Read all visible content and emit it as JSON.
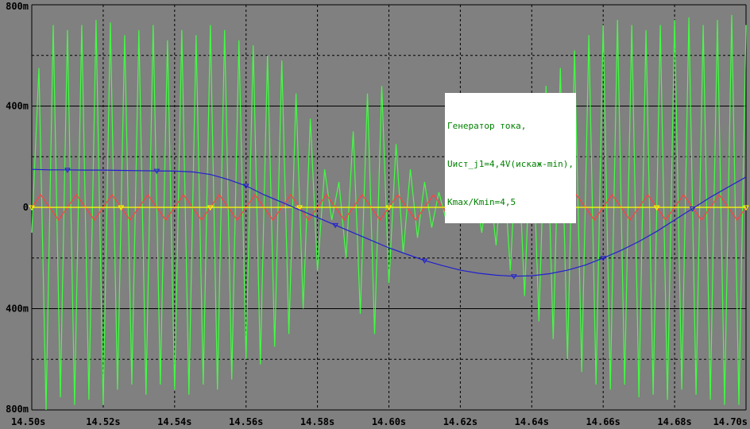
{
  "chart_data": {
    "type": "line",
    "title": "",
    "xlabel": "",
    "ylabel": "",
    "xlim": [
      14.5,
      14.7
    ],
    "ylim": [
      -0.8,
      0.8
    ],
    "grid": true,
    "x_ticks": [
      "14.50s",
      "14.52s",
      "14.54s",
      "14.56s",
      "14.58s",
      "14.60s",
      "14.62s",
      "14.64s",
      "14.66s",
      "14.68s",
      "14.70s"
    ],
    "y_ticks": [
      {
        "value": 0.8,
        "label": "800m"
      },
      {
        "value": 0.4,
        "label": "400m"
      },
      {
        "value": 0.0,
        "label": "0"
      },
      {
        "value": -0.4,
        "label": "400m"
      },
      {
        "value": -0.8,
        "label": "800m"
      }
    ],
    "annotation": [
      "Генератор тока,",
      "Uист_j1=4,4V(искаж-min),",
      "Kmax/Kmin=4,5"
    ],
    "series": [
      {
        "color": "#40FF40",
        "marker": "none",
        "x": [
          14.5,
          14.502,
          14.504,
          14.506,
          14.508,
          14.51,
          14.512,
          14.514,
          14.516,
          14.518,
          14.52,
          14.522,
          14.524,
          14.526,
          14.528,
          14.53,
          14.532,
          14.534,
          14.536,
          14.538,
          14.54,
          14.542,
          14.544,
          14.546,
          14.548,
          14.55,
          14.552,
          14.554,
          14.556,
          14.558,
          14.56,
          14.562,
          14.564,
          14.566,
          14.568,
          14.57,
          14.572,
          14.574,
          14.576,
          14.578,
          14.58,
          14.582,
          14.584,
          14.586,
          14.588,
          14.59,
          14.592,
          14.594,
          14.596,
          14.598,
          14.6,
          14.602,
          14.604,
          14.606,
          14.608,
          14.61,
          14.612,
          14.614,
          14.616,
          14.618,
          14.62,
          14.622,
          14.624,
          14.626,
          14.628,
          14.63,
          14.632,
          14.634,
          14.636,
          14.638,
          14.64,
          14.642,
          14.644,
          14.646,
          14.648,
          14.65,
          14.652,
          14.654,
          14.656,
          14.658,
          14.66,
          14.662,
          14.664,
          14.666,
          14.668,
          14.67,
          14.672,
          14.674,
          14.676,
          14.678,
          14.68,
          14.682,
          14.684,
          14.686,
          14.688,
          14.69,
          14.692,
          14.694,
          14.696,
          14.698,
          14.7
        ],
        "y": [
          -0.1,
          0.55,
          -0.8,
          0.72,
          -0.75,
          0.7,
          -0.78,
          0.72,
          -0.76,
          0.74,
          -0.78,
          0.73,
          -0.72,
          0.68,
          -0.7,
          0.7,
          -0.74,
          0.72,
          -0.7,
          0.66,
          -0.72,
          0.7,
          -0.74,
          0.68,
          -0.7,
          0.72,
          -0.72,
          0.7,
          -0.68,
          0.66,
          -0.6,
          0.64,
          -0.62,
          0.6,
          -0.55,
          0.58,
          -0.5,
          0.45,
          -0.4,
          0.35,
          -0.25,
          0.15,
          -0.05,
          0.1,
          -0.2,
          0.3,
          -0.42,
          0.45,
          -0.5,
          0.48,
          -0.3,
          0.25,
          -0.18,
          0.15,
          -0.12,
          0.1,
          -0.08,
          0.06,
          -0.05,
          0.04,
          0.05,
          -0.06,
          0.08,
          -0.1,
          0.12,
          -0.15,
          0.2,
          -0.25,
          0.3,
          -0.35,
          0.4,
          -0.45,
          0.48,
          -0.52,
          0.55,
          -0.6,
          0.62,
          -0.65,
          0.68,
          -0.7,
          0.72,
          -0.72,
          0.74,
          -0.7,
          0.72,
          -0.75,
          0.7,
          -0.74,
          0.72,
          -0.76,
          0.74,
          -0.72,
          0.75,
          -0.74,
          0.72,
          -0.76,
          0.74,
          -0.78,
          0.76,
          -0.78,
          0.72
        ]
      },
      {
        "color": "#FF4040",
        "marker": "none",
        "x": [
          14.5,
          14.5025,
          14.505,
          14.5075,
          14.51,
          14.5125,
          14.515,
          14.5175,
          14.52,
          14.5225,
          14.525,
          14.5275,
          14.53,
          14.5325,
          14.535,
          14.5375,
          14.54,
          14.5425,
          14.545,
          14.5475,
          14.55,
          14.5525,
          14.555,
          14.5575,
          14.56,
          14.5625,
          14.565,
          14.5675,
          14.57,
          14.5725,
          14.575,
          14.5775,
          14.58,
          14.5825,
          14.585,
          14.5875,
          14.59,
          14.5925,
          14.595,
          14.5975,
          14.6,
          14.6025,
          14.605,
          14.6075,
          14.61,
          14.6125,
          14.615,
          14.6175,
          14.62,
          14.6225,
          14.625,
          14.6275,
          14.63,
          14.6325,
          14.635,
          14.6375,
          14.64,
          14.6425,
          14.645,
          14.6475,
          14.65,
          14.6525,
          14.655,
          14.6575,
          14.66,
          14.6625,
          14.665,
          14.6675,
          14.67,
          14.6725,
          14.675,
          14.6775,
          14.68,
          14.6825,
          14.685,
          14.6875,
          14.69,
          14.6925,
          14.695,
          14.6975,
          14.7
        ],
        "y": [
          0.0,
          0.05,
          0.0,
          -0.05,
          0.0,
          0.05,
          0.0,
          -0.05,
          0.0,
          0.05,
          0.0,
          -0.05,
          0.0,
          0.05,
          0.0,
          -0.05,
          0.0,
          0.05,
          0.0,
          -0.05,
          0.0,
          0.05,
          0.0,
          -0.05,
          0.0,
          0.05,
          0.0,
          -0.05,
          0.0,
          0.05,
          0.0,
          -0.05,
          0.0,
          0.05,
          0.0,
          -0.05,
          0.0,
          0.05,
          0.0,
          -0.05,
          0.0,
          0.05,
          0.0,
          -0.05,
          0.0,
          0.05,
          0.0,
          -0.05,
          0.0,
          0.05,
          0.0,
          -0.05,
          0.0,
          0.05,
          0.0,
          -0.05,
          0.0,
          0.05,
          0.0,
          -0.05,
          0.0,
          0.05,
          0.0,
          -0.05,
          0.0,
          0.05,
          0.0,
          -0.05,
          0.0,
          0.05,
          0.0,
          -0.05,
          0.0,
          0.05,
          0.0,
          -0.05,
          0.0,
          0.05,
          0.0,
          -0.05,
          0.0
        ]
      },
      {
        "color": "#FFFF00",
        "marker": "triangle",
        "x": [
          14.5,
          14.7
        ],
        "y": [
          0.0,
          0.0
        ]
      },
      {
        "color": "#2020D0",
        "marker": "triangle",
        "x": [
          14.5,
          14.505,
          14.51,
          14.515,
          14.52,
          14.525,
          14.53,
          14.535,
          14.54,
          14.545,
          14.55,
          14.555,
          14.56,
          14.565,
          14.57,
          14.575,
          14.58,
          14.585,
          14.59,
          14.595,
          14.6,
          14.605,
          14.61,
          14.615,
          14.62,
          14.625,
          14.63,
          14.635,
          14.64,
          14.645,
          14.65,
          14.655,
          14.66,
          14.665,
          14.67,
          14.675,
          14.68,
          14.685,
          14.69,
          14.695,
          14.7
        ],
        "y": [
          0.15,
          0.148,
          0.148,
          0.147,
          0.147,
          0.146,
          0.145,
          0.144,
          0.143,
          0.14,
          0.13,
          0.11,
          0.085,
          0.05,
          0.02,
          -0.01,
          -0.04,
          -0.07,
          -0.1,
          -0.13,
          -0.16,
          -0.185,
          -0.21,
          -0.23,
          -0.248,
          -0.26,
          -0.268,
          -0.272,
          -0.27,
          -0.262,
          -0.248,
          -0.228,
          -0.2,
          -0.17,
          -0.135,
          -0.095,
          -0.05,
          -0.005,
          0.04,
          0.08,
          0.12
        ]
      }
    ]
  }
}
